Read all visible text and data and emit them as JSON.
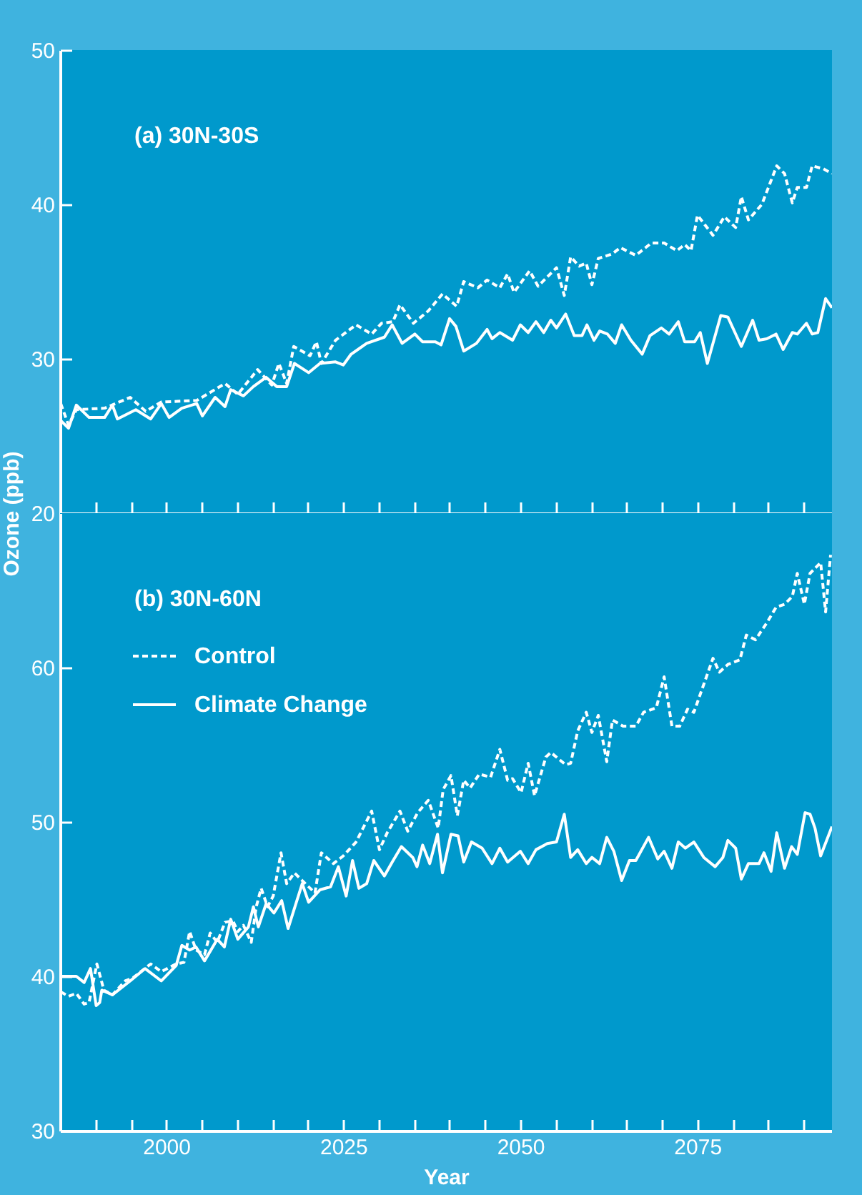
{
  "chart_data": [
    {
      "type": "line",
      "annotations": [
        "(a) 30N-30S"
      ],
      "xlim": [
        1985,
        2094
      ],
      "xticks": [
        {
          "value": 1990,
          "label": null
        },
        {
          "value": 1995,
          "label": null
        },
        2000,
        {
          "value": 2005,
          "label": null
        },
        {
          "value": 2010,
          "label": null
        },
        {
          "value": 2015,
          "label": null
        },
        {
          "value": 2020,
          "label": null
        },
        2025,
        {
          "value": 2030,
          "label": null
        },
        {
          "value": 2035,
          "label": null
        },
        {
          "value": 2040,
          "label": null
        },
        {
          "value": 2045,
          "label": null
        },
        2050,
        {
          "value": 2055,
          "label": null
        },
        {
          "value": 2060,
          "label": null
        },
        {
          "value": 2065,
          "label": null
        },
        {
          "value": 2070,
          "label": null
        },
        2075,
        {
          "value": 2080,
          "label": null
        },
        {
          "value": 2085,
          "label": null
        },
        {
          "value": 2090,
          "label": null
        }
      ],
      "ylim": [
        20,
        50
      ],
      "yticks": [
        20,
        30,
        40,
        50
      ],
      "tick_labels": "y",
      "grid": false,
      "series": [
        {
          "color": "#ffffff",
          "line_style": "dashed",
          "x": [
            1985.1,
            1986.2,
            1987.3,
            1991.3,
            1994.9,
            1997.1,
            1999.3,
            2004.3,
            2008.3,
            2010.1,
            2012.9,
            2014.9,
            2015.9,
            2017.0,
            2018.0,
            2020.3,
            2021.2,
            2021.9,
            2023.9,
            2026.8,
            2029.0,
            2030.4,
            2032.0,
            2033.0,
            2034.9,
            2037.0,
            2039.0,
            2041.0,
            2042.0,
            2044.0,
            2045.3,
            2047.1,
            2048.2,
            2049.1,
            2051.3,
            2052.5,
            2055.1,
            2056.2,
            2057.1,
            2058.3,
            2059.3,
            2060.1,
            2061.0,
            2063.0,
            2064.1,
            2066.3,
            2068.5,
            2070.3,
            2072.1,
            2073.2,
            2074.1,
            2075.0,
            2077.2,
            2078.8,
            2080.4,
            2081.2,
            2082.2,
            2084.1,
            2086.2,
            2087.3,
            2088.4,
            2089.1,
            2090.4,
            2091.2,
            2092.8,
            2094.0
          ],
          "values": [
            27.1,
            25.7,
            26.7,
            26.8,
            27.5,
            26.6,
            27.2,
            27.3,
            28.4,
            27.7,
            29.3,
            28.3,
            29.7,
            28.4,
            30.8,
            30.2,
            31.1,
            29.7,
            31.2,
            32.2,
            31.6,
            32.3,
            32.4,
            33.5,
            32.3,
            33.1,
            34.2,
            33.4,
            35.0,
            34.6,
            35.1,
            34.6,
            35.5,
            34.3,
            35.7,
            34.7,
            35.9,
            34.1,
            36.6,
            36.0,
            36.2,
            34.8,
            36.5,
            36.8,
            37.2,
            36.7,
            37.5,
            37.5,
            37.0,
            37.4,
            37.0,
            39.3,
            38.0,
            39.2,
            38.5,
            40.5,
            39.0,
            40.0,
            42.5,
            42.0,
            40.1,
            41.1,
            41.1,
            42.5,
            42.3,
            42.0
          ]
        },
        {
          "color": "#ffffff",
          "line_style": "solid",
          "x": [
            1985.1,
            1986.2,
            1987.3,
            1989.1,
            1991.3,
            1992.4,
            1993.1,
            1995.7,
            1997.8,
            1999.3,
            2000.4,
            2002.2,
            2004.3,
            2005.1,
            2006.9,
            2008.3,
            2009.1,
            2010.9,
            2012.3,
            2014.1,
            2015.6,
            2017.0,
            2018.1,
            2020.1,
            2021.7,
            2023.9,
            2025.0,
            2026.1,
            2028.3,
            2030.8,
            2031.9,
            2033.3,
            2035.1,
            2036.2,
            2038.0,
            2038.8,
            2040.0,
            2040.9,
            2042.0,
            2043.8,
            2045.3,
            2046.0,
            2047.1,
            2048.9,
            2050.0,
            2051.1,
            2052.2,
            2053.3,
            2054.3,
            2055.1,
            2056.4,
            2057.6,
            2058.7,
            2059.4,
            2060.4,
            2061.2,
            2062.3,
            2063.4,
            2064.3,
            2065.6,
            2067.2,
            2068.3,
            2069.9,
            2071.0,
            2072.3,
            2073.2,
            2074.6,
            2075.4,
            2076.4,
            2078.3,
            2079.3,
            2081.2,
            2082.8,
            2083.7,
            2084.8,
            2086.1,
            2087.1,
            2088.4,
            2089.1,
            2090.4,
            2091.2,
            2092.0,
            2093.1,
            2094.0
          ],
          "values": [
            26.0,
            25.5,
            27.0,
            26.2,
            26.2,
            27.0,
            26.1,
            26.7,
            26.1,
            27.1,
            26.2,
            26.8,
            27.1,
            26.3,
            27.5,
            26.9,
            28.0,
            27.6,
            28.2,
            28.8,
            28.2,
            28.2,
            29.7,
            29.1,
            29.7,
            29.8,
            29.6,
            30.3,
            31.0,
            31.4,
            32.2,
            31.0,
            31.6,
            31.1,
            31.1,
            30.9,
            32.6,
            32.1,
            30.5,
            31.0,
            31.9,
            31.3,
            31.7,
            31.2,
            32.2,
            31.7,
            32.4,
            31.7,
            32.5,
            32.0,
            32.9,
            31.5,
            31.5,
            32.2,
            31.2,
            31.8,
            31.6,
            31.0,
            32.2,
            31.2,
            30.3,
            31.5,
            32.0,
            31.6,
            32.4,
            31.1,
            31.1,
            31.7,
            29.7,
            32.8,
            32.7,
            30.8,
            32.5,
            31.2,
            31.3,
            31.6,
            30.6,
            31.7,
            31.6,
            32.3,
            31.6,
            31.7,
            33.9,
            33.3
          ]
        }
      ]
    },
    {
      "type": "line",
      "annotations": [
        "(b) 30N-60N"
      ],
      "xlabel": "Year",
      "ylabel": "Ozone (ppb)",
      "xlim": [
        1985,
        2094
      ],
      "xticks": [
        {
          "value": 1990,
          "label": null
        },
        {
          "value": 1995,
          "label": null
        },
        2000,
        {
          "value": 2005,
          "label": null
        },
        {
          "value": 2010,
          "label": null
        },
        {
          "value": 2015,
          "label": null
        },
        {
          "value": 2020,
          "label": null
        },
        2025,
        {
          "value": 2030,
          "label": null
        },
        {
          "value": 2035,
          "label": null
        },
        {
          "value": 2040,
          "label": null
        },
        {
          "value": 2045,
          "label": null
        },
        2050,
        {
          "value": 2055,
          "label": null
        },
        {
          "value": 2060,
          "label": null
        },
        {
          "value": 2065,
          "label": null
        },
        {
          "value": 2070,
          "label": null
        },
        2075,
        {
          "value": 2080,
          "label": null
        },
        {
          "value": 2085,
          "label": null
        },
        {
          "value": 2090,
          "label": null
        }
      ],
      "ylim": [
        30,
        70
      ],
      "yticks": [
        30,
        40,
        50,
        60
      ],
      "grid": false,
      "legend": "top left",
      "series": [
        {
          "name": "Control",
          "color": "#ffffff",
          "line_style": "dashed",
          "x": [
            1985.1,
            1986.2,
            1987.3,
            1988.4,
            1989.1,
            1990.2,
            1991.2,
            1992.4,
            1994.2,
            1995.3,
            1997.8,
            1999.3,
            2001.4,
            2002.5,
            2003.3,
            2004.2,
            2005.4,
            2006.2,
            2007.2,
            2008.3,
            2009.4,
            2010.1,
            2010.9,
            2012.0,
            2012.7,
            2013.4,
            2014.3,
            2015.1,
            2016.2,
            2017.0,
            2018.1,
            2019.2,
            2021.0,
            2021.9,
            2023.6,
            2025.0,
            2026.8,
            2029.0,
            2030.1,
            2031.2,
            2033.0,
            2034.1,
            2035.5,
            2037.0,
            2038.4,
            2039.1,
            2040.2,
            2041.1,
            2042.0,
            2042.9,
            2044.2,
            2045.8,
            2047.1,
            2048.2,
            2048.9,
            2050.1,
            2051.1,
            2052.0,
            2053.6,
            2054.3,
            2056.4,
            2057.1,
            2058.1,
            2059.3,
            2060.1,
            2061.0,
            2062.2,
            2063.0,
            2064.5,
            2066.3,
            2067.4,
            2069.2,
            2070.3,
            2071.4,
            2072.5,
            2073.6,
            2074.5,
            2077.2,
            2078.1,
            2079.3,
            2081.0,
            2081.9,
            2083.2,
            2084.8,
            2086.1,
            2087.3,
            2088.4,
            2089.1,
            2090.1,
            2090.9,
            2092.4,
            2093.1,
            2093.8
          ],
          "values": [
            39.0,
            38.7,
            38.9,
            38.2,
            38.3,
            40.8,
            39.1,
            38.8,
            39.7,
            39.9,
            40.8,
            40.3,
            40.8,
            40.9,
            42.9,
            41.7,
            41.4,
            42.8,
            42.2,
            43.5,
            43.6,
            42.9,
            43.3,
            42.2,
            44.5,
            45.7,
            44.5,
            45.2,
            48.0,
            46.0,
            46.7,
            46.2,
            45.4,
            48.0,
            47.3,
            47.8,
            48.7,
            50.7,
            48.2,
            49.3,
            50.7,
            49.4,
            50.6,
            51.4,
            49.6,
            52.1,
            53.0,
            50.4,
            52.7,
            52.2,
            53.1,
            52.9,
            54.7,
            52.7,
            52.8,
            51.9,
            53.8,
            51.7,
            54.2,
            54.5,
            53.7,
            53.8,
            55.9,
            57.1,
            55.8,
            56.9,
            53.9,
            56.6,
            56.2,
            56.2,
            57.1,
            57.4,
            59.4,
            56.2,
            56.2,
            57.3,
            57.1,
            60.6,
            59.7,
            60.2,
            60.5,
            62.1,
            61.8,
            62.9,
            63.9,
            64.1,
            64.6,
            66.1,
            64.1,
            66.1,
            66.8,
            63.6,
            67.3
          ]
        },
        {
          "name": "Climate Change",
          "color": "#ffffff",
          "line_style": "solid",
          "x": [
            1985.1,
            1987.3,
            1988.4,
            1989.3,
            1990.1,
            1990.6,
            1990.9,
            1992.4,
            1994.9,
            1997.0,
            1999.3,
            2001.4,
            2002.2,
            2003.3,
            2004.2,
            2005.4,
            2007.2,
            2008.2,
            2009.1,
            2010.1,
            2011.6,
            2012.3,
            2013.0,
            2014.1,
            2015.2,
            2016.3,
            2017.2,
            2019.2,
            2020.1,
            2021.7,
            2023.2,
            2024.3,
            2025.4,
            2026.3,
            2027.2,
            2028.3,
            2029.3,
            2030.8,
            2031.9,
            2033.2,
            2034.8,
            2035.4,
            2036.2,
            2037.2,
            2038.3,
            2039.0,
            2040.2,
            2041.2,
            2042.0,
            2043.1,
            2044.6,
            2046.0,
            2047.1,
            2048.2,
            2050.0,
            2051.1,
            2052.2,
            2053.8,
            2055.1,
            2056.2,
            2057.1,
            2058.1,
            2059.3,
            2060.1,
            2061.2,
            2062.2,
            2063.2,
            2064.3,
            2065.4,
            2066.3,
            2068.1,
            2069.4,
            2070.3,
            2071.4,
            2072.3,
            2073.3,
            2074.5,
            2075.9,
            2077.5,
            2078.6,
            2079.3,
            2080.4,
            2081.2,
            2082.2,
            2083.7,
            2084.4,
            2085.4,
            2086.2,
            2087.3,
            2088.3,
            2089.1,
            2090.2,
            2090.9,
            2091.6,
            2092.4,
            2094.0
          ],
          "values": [
            40.0,
            40.0,
            39.6,
            40.5,
            38.1,
            38.3,
            39.1,
            38.8,
            39.7,
            40.5,
            39.7,
            40.7,
            42.0,
            41.7,
            41.9,
            41.0,
            42.4,
            41.9,
            43.7,
            42.4,
            43.2,
            44.5,
            43.2,
            44.7,
            44.1,
            44.9,
            43.1,
            46.0,
            44.8,
            45.6,
            45.8,
            47.1,
            45.2,
            47.5,
            45.7,
            46.0,
            47.5,
            46.5,
            47.4,
            48.4,
            47.7,
            47.1,
            48.5,
            47.3,
            49.2,
            46.7,
            49.2,
            49.1,
            47.4,
            48.7,
            48.3,
            47.3,
            48.3,
            47.4,
            48.1,
            47.3,
            48.2,
            48.6,
            48.7,
            50.5,
            47.7,
            48.2,
            47.3,
            47.7,
            47.3,
            49.0,
            48.1,
            46.2,
            47.5,
            47.5,
            49.0,
            47.6,
            48.1,
            47.0,
            48.7,
            48.3,
            48.7,
            47.7,
            47.1,
            47.7,
            48.8,
            48.3,
            46.3,
            47.3,
            47.3,
            48.0,
            46.8,
            49.3,
            47.0,
            48.4,
            47.9,
            50.6,
            50.5,
            49.6,
            47.8,
            49.7
          ]
        }
      ]
    }
  ]
}
